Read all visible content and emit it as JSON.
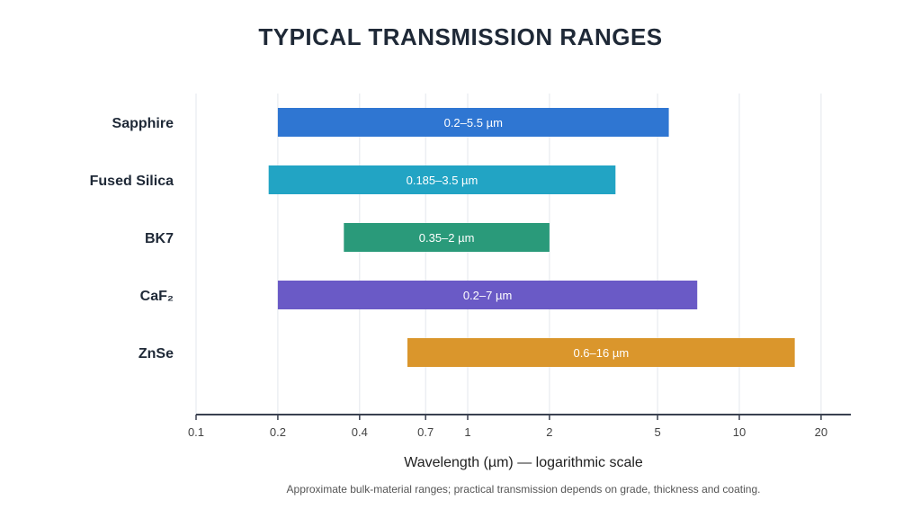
{
  "chart_data": {
    "type": "bar",
    "orientation": "horizontal",
    "title": "TYPICAL TRANSMISSION RANGES",
    "xlabel": "Wavelength (µm) — logarithmic scale",
    "ylabel": "",
    "x_scale": "log",
    "xlim": [
      0.1,
      25
    ],
    "xticks": [
      0.1,
      0.2,
      0.4,
      0.7,
      1,
      2,
      5,
      10,
      20
    ],
    "xtick_labels": [
      "0.1",
      "0.2",
      "0.4",
      "0.7",
      "1",
      "2",
      "5",
      "10",
      "20"
    ],
    "grid": "vertical",
    "categories": [
      "Sapphire",
      "Fused Silica",
      "BK7",
      "CaF₂",
      "ZnSe"
    ],
    "ranges": [
      {
        "name": "Sapphire",
        "start": 0.2,
        "end": 5.5,
        "label": "0.2–5.5 µm",
        "color": "#2f76d2"
      },
      {
        "name": "Fused Silica",
        "start": 0.185,
        "end": 3.5,
        "label": "0.185–3.5 µm",
        "color": "#22a4c4"
      },
      {
        "name": "BK7",
        "start": 0.35,
        "end": 2,
        "label": "0.35–2 µm",
        "color": "#2a9a7a"
      },
      {
        "name": "CaF₂",
        "start": 0.2,
        "end": 7,
        "label": "0.2–7 µm",
        "color": "#6a5ac6"
      },
      {
        "name": "ZnSe",
        "start": 0.6,
        "end": 16,
        "label": "0.6–16 µm",
        "color": "#da962c"
      }
    ],
    "footnote": "Approximate bulk-material ranges; practical transmission depends on grade, thickness and coating."
  }
}
